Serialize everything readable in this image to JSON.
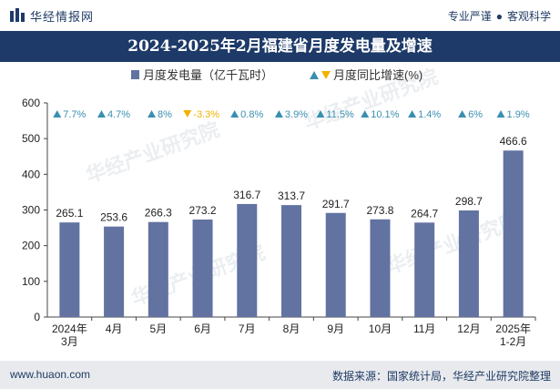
{
  "header": {
    "brand": "华经情报网",
    "slogan_left": "专业严谨",
    "slogan_right": "客观科学"
  },
  "title": "2024-2025年2月福建省月度发电量及增速",
  "legend": {
    "bar_label": "月度发电量（亿千瓦时）",
    "rate_label": "月度同比增速(%)"
  },
  "watermark": "华经产业研究院",
  "footer": {
    "site": "www.huaon.com",
    "source": "数据来源：国家统计局，华经产业研究院整理"
  },
  "colors": {
    "bar": "#6272a1",
    "up": "#3a8fb1",
    "down": "#f2b100",
    "header_bg": "#1d3a69",
    "footer_bg": "#e8eaee"
  },
  "chart_data": {
    "type": "bar",
    "categories": [
      "2024年\n3月",
      "4月",
      "5月",
      "6月",
      "7月",
      "8月",
      "9月",
      "10月",
      "11月",
      "12月",
      "2025年\n1-2月"
    ],
    "series": [
      {
        "name": "月度发电量（亿千瓦时）",
        "values": [
          265.1,
          253.6,
          266.3,
          273.2,
          316.7,
          313.7,
          291.7,
          273.8,
          264.7,
          298.7,
          466.6
        ]
      }
    ],
    "growth_rates": [
      {
        "label": "7.7%",
        "value": 7.7
      },
      {
        "label": "4.7%",
        "value": 4.7
      },
      {
        "label": "8%",
        "value": 8
      },
      {
        "label": "-3.3%",
        "value": -3.3
      },
      {
        "label": "0.8%",
        "value": 0.8
      },
      {
        "label": "3.9%",
        "value": 3.9
      },
      {
        "label": "11.5%",
        "value": 11.5
      },
      {
        "label": "10.1%",
        "value": 10.1
      },
      {
        "label": "1.4%",
        "value": 1.4
      },
      {
        "label": "6%",
        "value": 6
      },
      {
        "label": "1.9%",
        "value": 1.9
      }
    ],
    "yticks": [
      0,
      100,
      200,
      300,
      400,
      500,
      600
    ],
    "ylim": [
      0,
      600
    ],
    "grid": false,
    "legend_position": "top-center"
  }
}
